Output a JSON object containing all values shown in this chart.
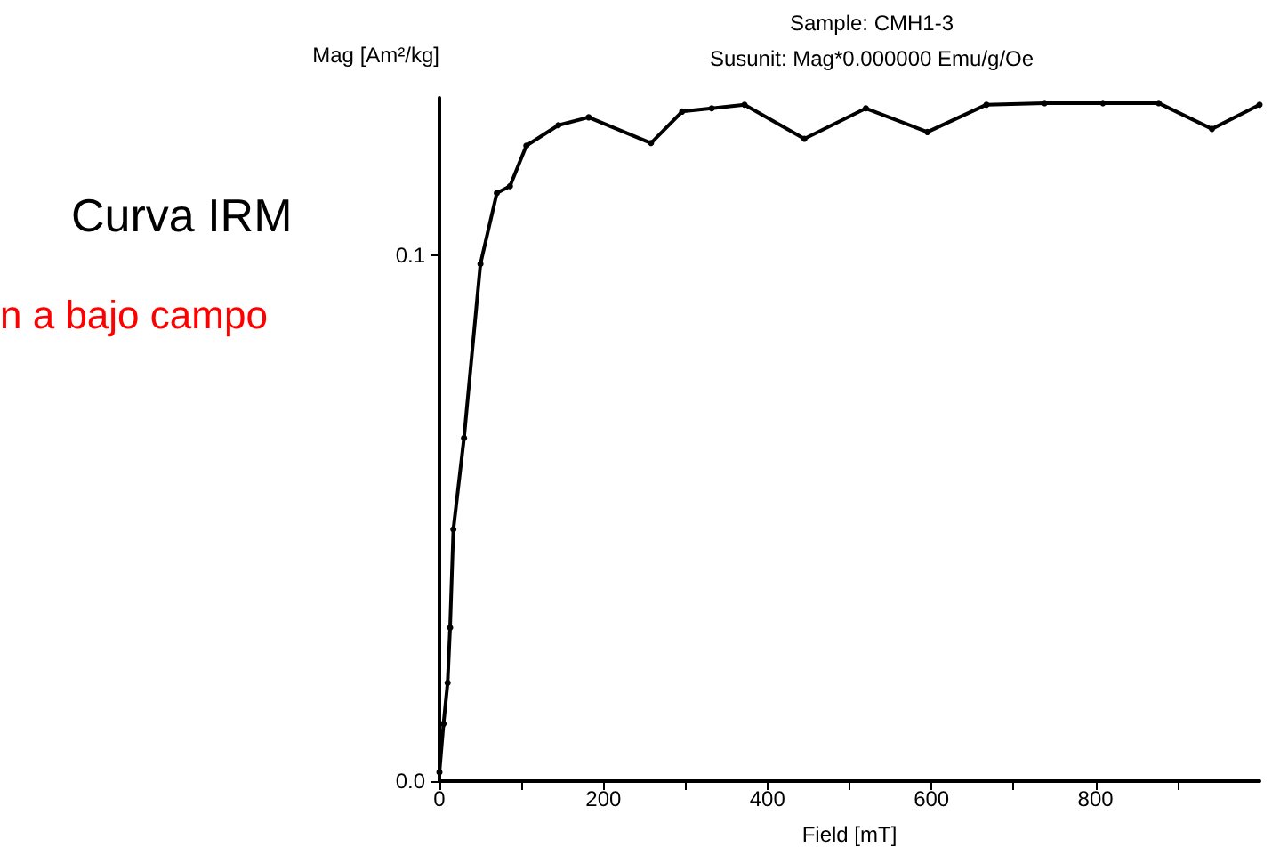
{
  "chart_data": {
    "type": "line",
    "title": "Sample: CMH1-3",
    "subtitle": "Susunit: Mag*0.000000 Emu/g/Oe",
    "xlabel": "Field [mT]",
    "ylabel": "Mag [Am²/kg]",
    "annotations": [
      "Curva IRM",
      "n a bajo campo"
    ],
    "x": [
      0,
      5,
      10,
      13,
      17,
      30,
      50,
      70,
      86,
      106,
      145,
      182,
      258,
      296,
      332,
      372,
      445,
      520,
      595,
      667,
      738,
      809,
      877,
      942,
      1000
    ],
    "series": [
      {
        "color": "#000000",
        "values": [
          0.0017,
          0.0109,
          0.0187,
          0.0292,
          0.0479,
          0.0653,
          0.0984,
          0.1119,
          0.1132,
          0.1209,
          0.1248,
          0.1263,
          0.1214,
          0.1274,
          0.128,
          0.1287,
          0.1222,
          0.128,
          0.1235,
          0.1287,
          0.129,
          0.129,
          0.129,
          0.1241,
          0.1287
        ]
      }
    ],
    "xlim": [
      0,
      1000
    ],
    "ylim": [
      0,
      0.13
    ],
    "xticks": [
      0,
      {
        "value": 100,
        "label": null
      },
      200,
      {
        "value": 300,
        "label": null
      },
      400,
      {
        "value": 500,
        "label": null
      },
      600,
      {
        "value": 700,
        "label": null
      },
      800,
      {
        "value": 900,
        "label": null
      }
    ],
    "yticks": [
      {
        "value": 0,
        "label": "0.0"
      },
      0.1
    ],
    "grid": false,
    "marker": "circle",
    "line_style": "solid"
  }
}
